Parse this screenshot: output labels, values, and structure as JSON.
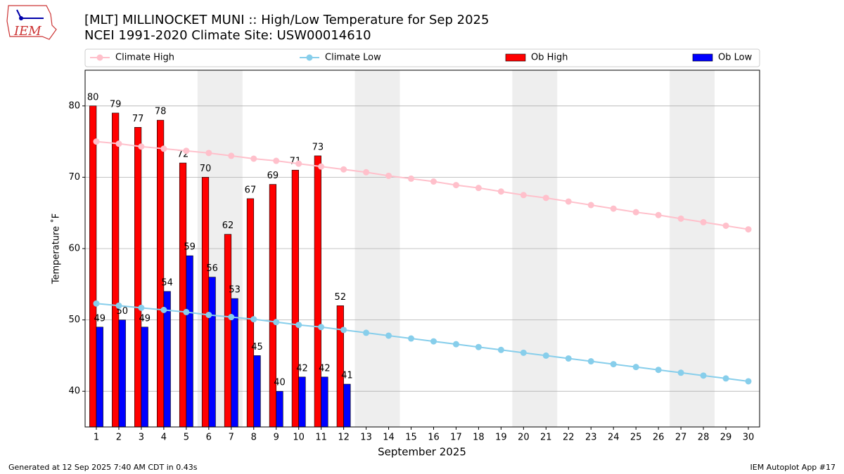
{
  "logo": "IEM",
  "footer_left": "Generated at 12 Sep 2025 7:40 AM CDT in 0.43s",
  "footer_right": "IEM Autoplot App #17",
  "chart_data": {
    "type": "bar",
    "title": "[MLT] MILLINOCKET MUNI :: High/Low Temperature for Sep 2025",
    "subtitle": "NCEI 1991-2020 Climate Site: USW00014610",
    "x_label": "September 2025",
    "y_label": "Temperature ˚F",
    "x": [
      1,
      2,
      3,
      4,
      5,
      6,
      7,
      8,
      9,
      10,
      11,
      12,
      13,
      14,
      15,
      16,
      17,
      18,
      19,
      20,
      21,
      22,
      23,
      24,
      25,
      26,
      27,
      28,
      29,
      30
    ],
    "xlim": [
      0.5,
      30.5
    ],
    "xticks": [
      1,
      2,
      3,
      4,
      5,
      6,
      7,
      8,
      9,
      10,
      11,
      12,
      13,
      14,
      15,
      16,
      17,
      18,
      19,
      20,
      21,
      22,
      23,
      24,
      25,
      26,
      27,
      28,
      29,
      30
    ],
    "ylim": [
      35,
      85
    ],
    "yticks": [
      40,
      50,
      60,
      70,
      80
    ],
    "grid": true,
    "series": [
      {
        "name": "Climate High",
        "type": "line",
        "color": "#ffc0cb",
        "values": [
          75,
          74.7,
          74.3,
          74.0,
          73.7,
          73.4,
          73.0,
          72.6,
          72.3,
          71.9,
          71.5,
          71.1,
          70.7,
          70.2,
          69.8,
          69.4,
          68.9,
          68.5,
          68.0,
          67.5,
          67.1,
          66.6,
          66.1,
          65.6,
          65.1,
          64.7,
          64.2,
          63.7,
          63.2,
          62.7
        ]
      },
      {
        "name": "Climate Low",
        "type": "line",
        "color": "#87ceeb",
        "values": [
          52.3,
          52.0,
          51.7,
          51.4,
          51.1,
          50.7,
          50.4,
          50.1,
          49.7,
          49.3,
          49.0,
          48.6,
          48.2,
          47.8,
          47.4,
          47.0,
          46.6,
          46.2,
          45.8,
          45.4,
          45.0,
          44.6,
          44.2,
          43.8,
          43.4,
          43.0,
          42.6,
          42.2,
          41.8,
          41.4
        ]
      },
      {
        "name": "Ob High",
        "type": "bar",
        "color": "#ff0000",
        "values": [
          80,
          79,
          77,
          78,
          72,
          70,
          62,
          67,
          69,
          71,
          73,
          52,
          null,
          null,
          null,
          null,
          null,
          null,
          null,
          null,
          null,
          null,
          null,
          null,
          null,
          null,
          null,
          null,
          null,
          null
        ]
      },
      {
        "name": "Ob Low",
        "type": "bar",
        "color": "#0000ff",
        "values": [
          49,
          50,
          49,
          54,
          59,
          56,
          53,
          45,
          40,
          42,
          42,
          41,
          null,
          null,
          null,
          null,
          null,
          null,
          null,
          null,
          null,
          null,
          null,
          null,
          null,
          null,
          null,
          null,
          null,
          null
        ]
      }
    ]
  }
}
